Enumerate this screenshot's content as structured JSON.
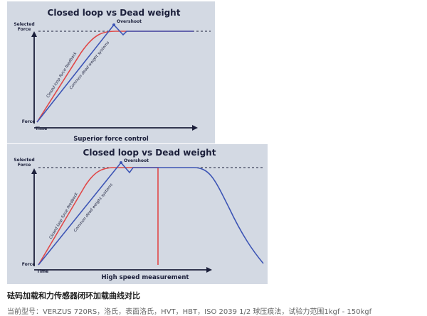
{
  "figure1": {
    "title": "Closed loop vs Dead weight",
    "y_top_label_line1": "Selected",
    "y_top_label_line2": "Force",
    "y_origin_label": "Force",
    "x_axis_label": "Time",
    "overshoot_label": "Overshoot",
    "red_curve_label": "Closed loop force feedback",
    "blue_curve_label": "Common dead weight systems",
    "caption": "Superior force control",
    "colors": {
      "background": "#d3d9e3",
      "closed_loop": "#e04848",
      "dead_weight": "#3d55b5",
      "axis": "#1b1f3a"
    }
  },
  "figure2": {
    "title": "Closed loop vs Dead weight",
    "y_top_label_line1": "Selected",
    "y_top_label_line2": "Force",
    "y_origin_label": "Force",
    "x_axis_label": "Time",
    "overshoot_label": "Overshoot",
    "red_curve_label": "Closed loop force feedback",
    "blue_curve_label": "Common dead weight systems",
    "caption": "High speed measurement",
    "colors": {
      "background": "#d3d9e3",
      "closed_loop": "#e04848",
      "dead_weight": "#3d55b5",
      "axis": "#1b1f3a"
    }
  },
  "caption": "砝码加载和力传感器闭环加载曲线对比",
  "model_line": "当前型号：VERZUS 720RS，洛氏，表面洛氏，HVT，HBT，ISO 2039 1/2 球压痕法，试验力范围1kgf - 150kgf"
}
